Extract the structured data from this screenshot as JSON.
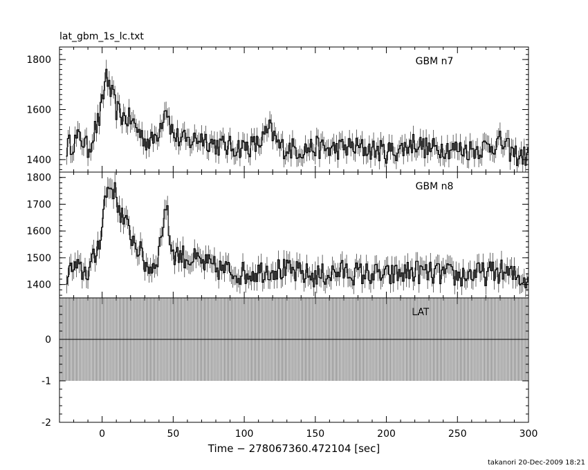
{
  "title": "lat_gbm_1s_lc.txt",
  "footer": "takanori 20-Dec-2009 18:21",
  "chart_data": {
    "type": "line",
    "xlabel": "Time − 278067360.472104 [sec]",
    "xlim": [
      -30,
      300
    ],
    "xticks": [
      0,
      50,
      100,
      150,
      200,
      250,
      300
    ],
    "panels": [
      {
        "label": "GBM n7",
        "ylim": [
          1350,
          1850
        ],
        "yticks": [
          1400,
          1600,
          1800
        ],
        "series": [
          {
            "x": [
              -25,
              -20,
              -15,
              -10,
              -5,
              -2,
              0,
              2,
              3,
              5,
              8,
              10,
              15,
              20,
              25,
              30,
              35,
              40,
              42,
              45,
              48,
              50,
              55,
              60,
              70,
              80,
              90,
              100,
              110,
              118,
              125,
              140,
              150,
              160,
              175,
              190,
              200,
              210,
              220,
              230,
              240,
              250,
              260,
              270,
              280,
              290,
              300
            ],
            "y": [
              1450,
              1470,
              1490,
              1440,
              1520,
              1560,
              1620,
              1700,
              1760,
              1680,
              1640,
              1600,
              1570,
              1560,
              1520,
              1480,
              1470,
              1520,
              1560,
              1620,
              1540,
              1500,
              1480,
              1470,
              1490,
              1460,
              1450,
              1450,
              1460,
              1520,
              1450,
              1440,
              1450,
              1440,
              1450,
              1440,
              1430,
              1440,
              1470,
              1440,
              1450,
              1440,
              1440,
              1450,
              1470,
              1420,
              1410
            ]
          }
        ]
      },
      {
        "label": "GBM n8",
        "ylim": [
          1350,
          1820
        ],
        "yticks": [
          1400,
          1500,
          1600,
          1700,
          1800
        ],
        "series": [
          {
            "x": [
              -25,
              -20,
              -15,
              -10,
              -5,
              0,
              2,
              5,
              8,
              10,
              15,
              20,
              25,
              30,
              35,
              40,
              43,
              45,
              48,
              50,
              55,
              60,
              65,
              70,
              80,
              90,
              100,
              110,
              120,
              130,
              140,
              150,
              160,
              170,
              180,
              190,
              200,
              210,
              220,
              230,
              240,
              250,
              260,
              270,
              280,
              290,
              300
            ],
            "y": [
              1440,
              1460,
              1450,
              1450,
              1500,
              1620,
              1720,
              1770,
              1760,
              1720,
              1640,
              1590,
              1540,
              1480,
              1460,
              1520,
              1640,
              1700,
              1560,
              1520,
              1510,
              1500,
              1490,
              1480,
              1460,
              1450,
              1440,
              1450,
              1460,
              1450,
              1440,
              1430,
              1440,
              1450,
              1440,
              1440,
              1430,
              1440,
              1450,
              1440,
              1440,
              1430,
              1440,
              1440,
              1450,
              1430,
              1420
            ]
          }
        ]
      },
      {
        "label": "LAT",
        "ylim": [
          -2,
          1
        ],
        "yticks": [
          -2,
          -1,
          0
        ],
        "series": [
          {
            "x": [
              -30,
              300
            ],
            "y": [
              0,
              0
            ],
            "errorbar": [
              -1,
              1
            ]
          }
        ]
      }
    ],
    "grid": false
  }
}
